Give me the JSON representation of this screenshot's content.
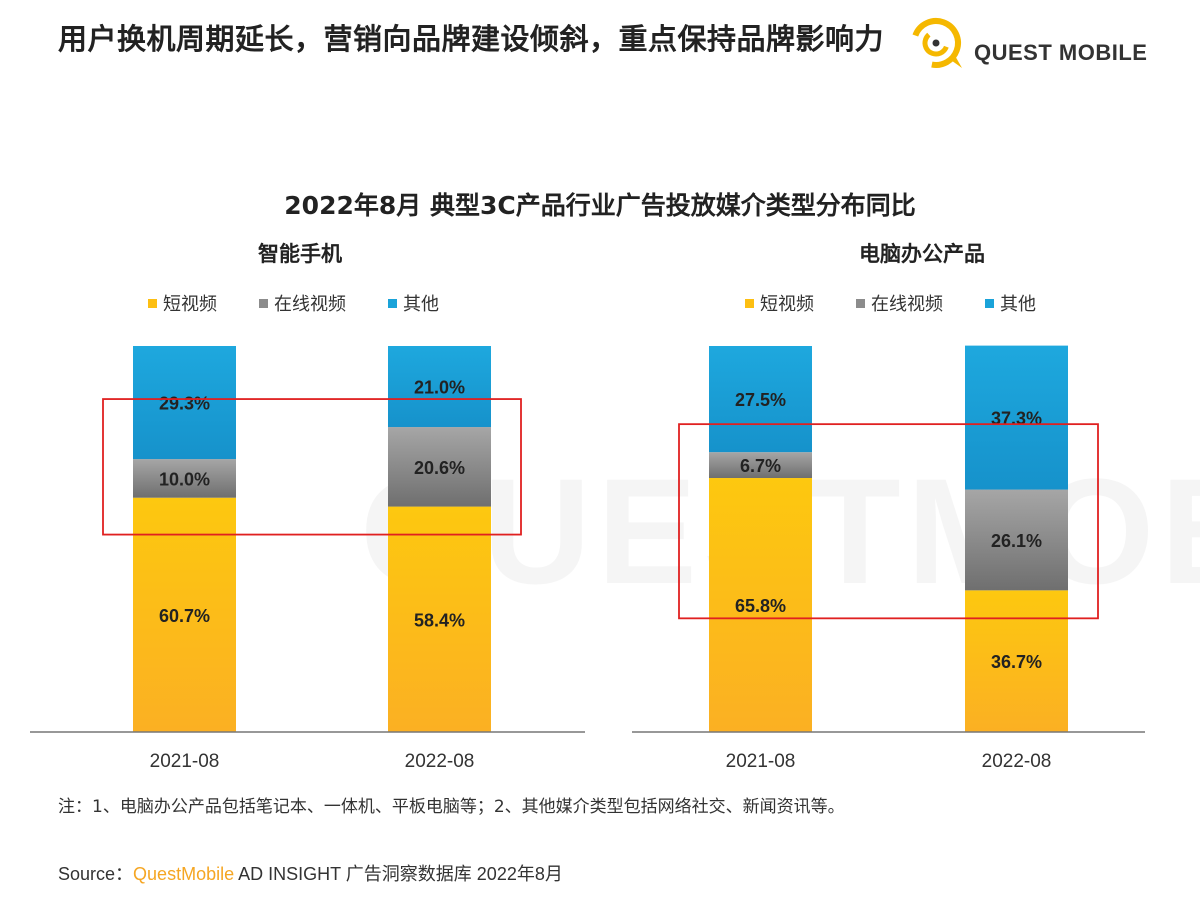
{
  "headline": "用户换机周期延长，营销向品牌建设倾斜，重点保持品牌影响力",
  "logo": {
    "text": "QUEST MOBILE"
  },
  "watermark": "QUESTMOBILE",
  "colors": {
    "short_video": "#fdbf12",
    "online_video": "#8c8c8c",
    "other": "#1aa3d9",
    "highlight": "#e02020"
  },
  "chart_data": [
    {
      "type": "bar",
      "stacked": true,
      "title": "智能手机",
      "categories": [
        "2021-08",
        "2022-08"
      ],
      "series": [
        {
          "name": "短视频",
          "values": [
            60.7,
            58.4
          ]
        },
        {
          "name": "在线视频",
          "values": [
            10.0,
            20.6
          ]
        },
        {
          "name": "其他",
          "values": [
            29.3,
            21.0
          ]
        }
      ],
      "labels": [
        [
          "60.7%",
          "10.0%",
          "29.3%"
        ],
        [
          "58.4%",
          "20.6%",
          "21.0%"
        ]
      ],
      "unit": "%",
      "ylim": [
        0,
        100
      ],
      "legend": "top",
      "highlight_series": "在线视频"
    },
    {
      "type": "bar",
      "stacked": true,
      "title": "电脑办公产品",
      "categories": [
        "2021-08",
        "2022-08"
      ],
      "series": [
        {
          "name": "短视频",
          "values": [
            65.8,
            36.7
          ]
        },
        {
          "name": "在线视频",
          "values": [
            6.7,
            26.1
          ]
        },
        {
          "name": "其他",
          "values": [
            27.5,
            37.3
          ]
        }
      ],
      "labels": [
        [
          "65.8%",
          "6.7%",
          "27.5%"
        ],
        [
          "36.7%",
          "26.1%",
          "37.3%"
        ]
      ],
      "unit": "%",
      "ylim": [
        0,
        100
      ],
      "legend": "top",
      "highlight_series": "在线视频"
    }
  ],
  "main_title": "2022年8月 典型3C产品行业广告投放媒介类型分布同比",
  "note": "注：1、电脑办公产品包括笔记本、一体机、平板电脑等；2、其他媒介类型包括网络社交、新闻资讯等。",
  "source": {
    "prefix": "Source：",
    "brand": "QuestMobile",
    "suffix": " AD INSIGHT 广告洞察数据库 2022年8月"
  }
}
